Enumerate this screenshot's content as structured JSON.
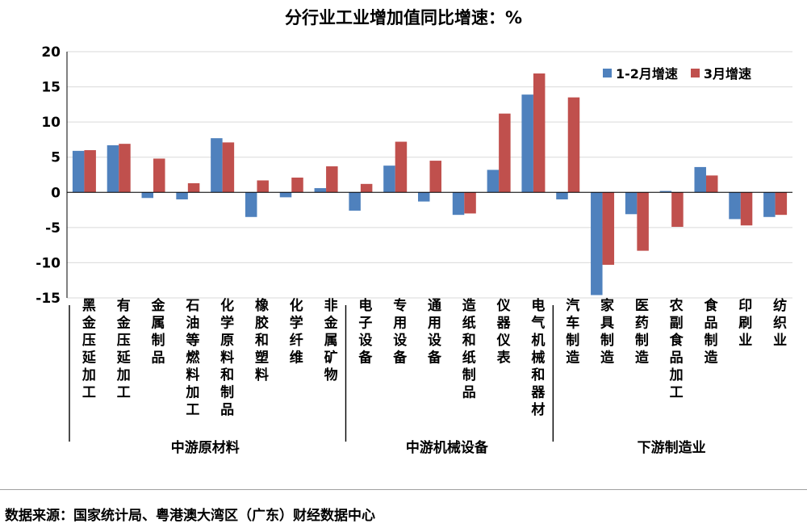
{
  "chart_data": {
    "type": "bar",
    "title": "分行业工业增加值同比增速：%",
    "ylim": [
      -15,
      20
    ],
    "yticks": [
      20,
      15,
      10,
      5,
      0,
      -5,
      -10,
      -15
    ],
    "categories": [
      "黑金压延加工",
      "有金压延加工",
      "金属制品",
      "石油等燃料加工",
      "化学原料和制品",
      "橡胶和塑料",
      "化学纤维",
      "非金属矿物",
      "电子设备",
      "专用设备",
      "通用设备",
      "造纸和纸制品",
      "仪器仪表",
      "电气机械和器材",
      "汽车制造",
      "家具制造",
      "医药制造",
      "农副食品加工",
      "食品制造",
      "印刷业",
      "纺织业"
    ],
    "series": [
      {
        "name": "1-2月增速",
        "color": "#4f81bd",
        "values": [
          5.9,
          6.7,
          -0.8,
          -1.0,
          7.7,
          -3.5,
          -0.7,
          0.6,
          -2.6,
          3.8,
          -1.3,
          -3.2,
          3.2,
          13.9,
          -1.0,
          -14.6,
          -3.1,
          0.2,
          3.6,
          -3.8,
          -3.5
        ]
      },
      {
        "name": "3月增速",
        "color": "#c0504d",
        "values": [
          6.0,
          6.9,
          4.8,
          1.3,
          7.1,
          1.7,
          2.1,
          3.7,
          1.2,
          7.2,
          4.5,
          -3.0,
          11.2,
          16.9,
          13.5,
          -10.3,
          -8.3,
          -4.9,
          2.4,
          -4.7,
          -3.2
        ]
      }
    ],
    "groups": [
      {
        "label": "中游原材料",
        "start": 0,
        "end": 7
      },
      {
        "label": "中游机械设备",
        "start": 8,
        "end": 13
      },
      {
        "label": "下游制造业",
        "start": 14,
        "end": 20
      }
    ],
    "legend_position": "top-right",
    "grid": true
  },
  "source": "数据来源：国家统计局、粤港澳大湾区（广东）财经数据中心"
}
